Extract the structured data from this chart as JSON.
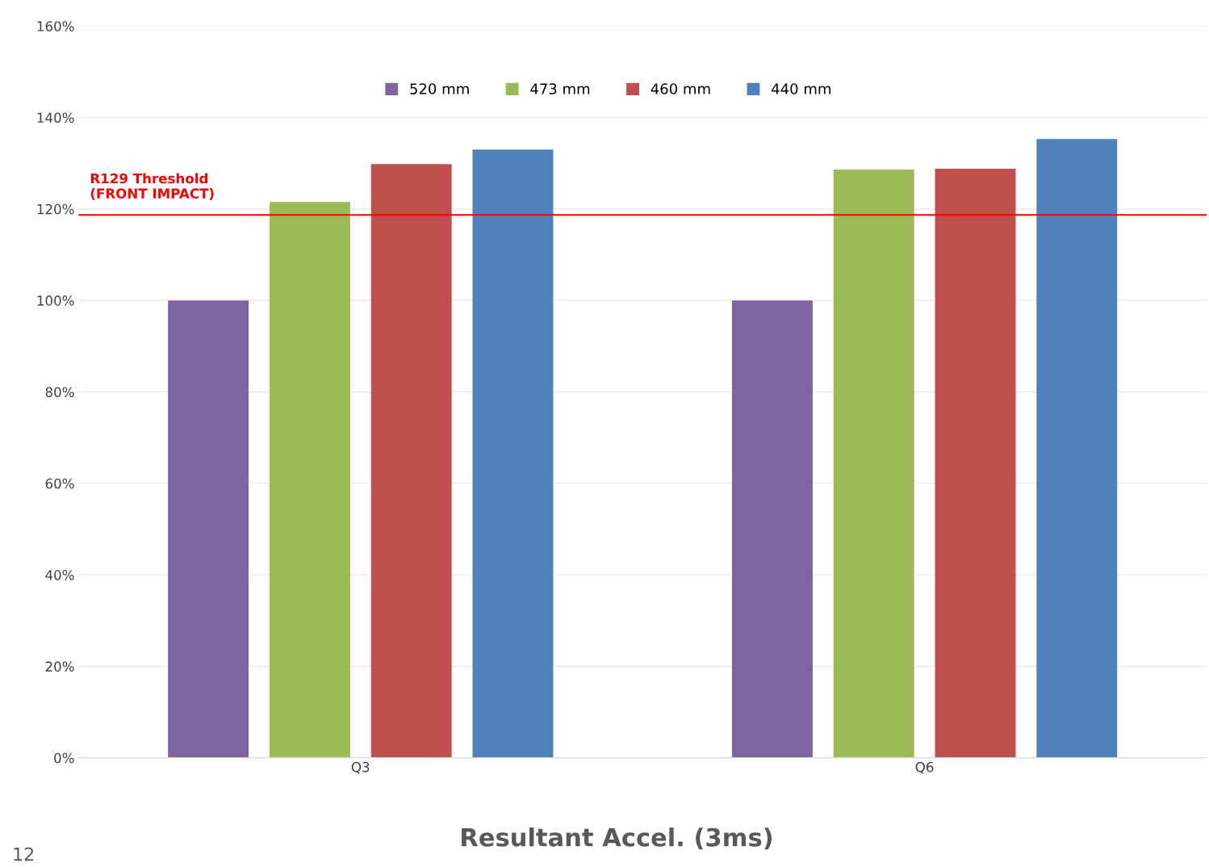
{
  "chart_data": {
    "type": "bar",
    "title": "Resultant Accel. (3ms)",
    "categories": [
      "Q3",
      "Q6"
    ],
    "series": [
      {
        "name": "520 mm",
        "color": "#8064a2",
        "values": [
          100,
          100
        ]
      },
      {
        "name": "473 mm",
        "color": "#9bbb59",
        "values": [
          121.5,
          128.6
        ]
      },
      {
        "name": "460 mm",
        "color": "#c0504d",
        "values": [
          129.8,
          128.8
        ]
      },
      {
        "name": "440 mm",
        "color": "#4f81bd",
        "values": [
          133.0,
          135.3
        ]
      }
    ],
    "ylim": [
      0,
      160
    ],
    "yticks": [
      {
        "value": 0,
        "label": "0%"
      },
      {
        "value": 20,
        "label": "20%"
      },
      {
        "value": 40,
        "label": "40%"
      },
      {
        "value": 60,
        "label": "60%"
      },
      {
        "value": 80,
        "label": "80%"
      },
      {
        "value": 100,
        "label": "100%"
      },
      {
        "value": 120,
        "label": "120%"
      },
      {
        "value": 140,
        "label": "140%"
      },
      {
        "value": 160,
        "label": "160%"
      }
    ],
    "ref_lines": [
      {
        "axis": "y",
        "value": 118.7,
        "label": "R129 Threshold\n(FRONT IMPACT)",
        "color": "#ff0000"
      }
    ],
    "annotations": [
      "12"
    ],
    "grid": "y",
    "legend": "top"
  }
}
